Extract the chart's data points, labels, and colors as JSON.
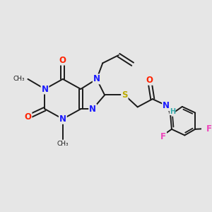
{
  "bg_color": "#e6e6e6",
  "bond_color": "#1a1a1a",
  "bond_width": 1.4,
  "atom_colors": {
    "N": "#1a1aff",
    "O": "#ff2200",
    "S": "#bbaa00",
    "F": "#ee44bb",
    "C": "#1a1a1a",
    "H": "#33aaaa"
  },
  "font_size": 8.5,
  "fig_size": [
    3.0,
    3.0
  ],
  "dpi": 100
}
